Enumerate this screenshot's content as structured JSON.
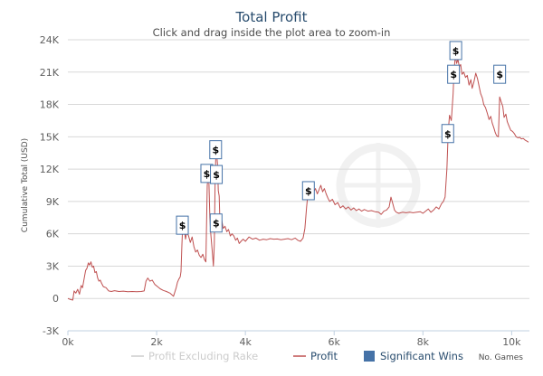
{
  "chart_data": {
    "type": "line",
    "title": "Total Profit",
    "subtitle": "Click and drag inside the plot area to zoom-in",
    "ylabel": "Cumulative Total (USD)",
    "xlabel": "No. Games",
    "xlim": [
      0,
      10400
    ],
    "ylim": [
      -3000,
      24000
    ],
    "x_ticks": [
      0,
      2000,
      4000,
      6000,
      8000,
      10000
    ],
    "x_tick_labels": [
      "0k",
      "2k",
      "4k",
      "6k",
      "8k",
      "10k"
    ],
    "y_ticks": [
      -3000,
      0,
      3000,
      6000,
      9000,
      12000,
      15000,
      18000,
      21000,
      24000
    ],
    "y_tick_labels": [
      "-3K",
      "0",
      "3K",
      "6K",
      "9K",
      "12K",
      "15K",
      "18K",
      "21K",
      "24K"
    ],
    "grid": "horizontal",
    "legend_position": "bottom",
    "legend": [
      {
        "label": "Profit Excluding Rake",
        "color": "#cccccc",
        "kind": "line"
      },
      {
        "label": "Profit",
        "color": "#bf5050",
        "kind": "line"
      },
      {
        "label": "Significant Wins",
        "color": "#4572a7",
        "kind": "box"
      }
    ],
    "series": [
      {
        "name": "Profit",
        "color": "#bf5050",
        "points": [
          [
            0,
            0
          ],
          [
            60,
            -100
          ],
          [
            110,
            -150
          ],
          [
            140,
            700
          ],
          [
            180,
            500
          ],
          [
            220,
            850
          ],
          [
            260,
            400
          ],
          [
            300,
            1200
          ],
          [
            330,
            1000
          ],
          [
            370,
            1900
          ],
          [
            400,
            2600
          ],
          [
            430,
            2800
          ],
          [
            460,
            3300
          ],
          [
            490,
            3100
          ],
          [
            520,
            3400
          ],
          [
            550,
            2900
          ],
          [
            580,
            3000
          ],
          [
            610,
            2400
          ],
          [
            640,
            2500
          ],
          [
            670,
            1900
          ],
          [
            700,
            1600
          ],
          [
            730,
            1700
          ],
          [
            760,
            1400
          ],
          [
            800,
            1100
          ],
          [
            860,
            1000
          ],
          [
            920,
            700
          ],
          [
            980,
            650
          ],
          [
            1050,
            720
          ],
          [
            1150,
            650
          ],
          [
            1250,
            680
          ],
          [
            1350,
            620
          ],
          [
            1450,
            650
          ],
          [
            1550,
            620
          ],
          [
            1650,
            650
          ],
          [
            1720,
            700
          ],
          [
            1760,
            1600
          ],
          [
            1800,
            1900
          ],
          [
            1850,
            1600
          ],
          [
            1900,
            1700
          ],
          [
            1960,
            1300
          ],
          [
            2020,
            1100
          ],
          [
            2080,
            900
          ],
          [
            2150,
            750
          ],
          [
            2220,
            650
          ],
          [
            2300,
            500
          ],
          [
            2380,
            200
          ],
          [
            2440,
            1000
          ],
          [
            2470,
            1500
          ],
          [
            2500,
            1800
          ],
          [
            2530,
            2000
          ],
          [
            2550,
            2500
          ],
          [
            2570,
            5000
          ],
          [
            2590,
            7000
          ],
          [
            2620,
            6500
          ],
          [
            2650,
            5500
          ],
          [
            2680,
            6200
          ],
          [
            2720,
            5800
          ],
          [
            2760,
            5200
          ],
          [
            2800,
            5700
          ],
          [
            2840,
            4800
          ],
          [
            2880,
            4300
          ],
          [
            2920,
            4500
          ],
          [
            2960,
            4000
          ],
          [
            3000,
            3800
          ],
          [
            3040,
            4100
          ],
          [
            3080,
            3600
          ],
          [
            3110,
            3400
          ],
          [
            3140,
            10500
          ],
          [
            3170,
            11800
          ],
          [
            3200,
            7500
          ],
          [
            3220,
            6000
          ],
          [
            3240,
            5000
          ],
          [
            3260,
            4000
          ],
          [
            3280,
            3000
          ],
          [
            3300,
            5000
          ],
          [
            3320,
            11500
          ],
          [
            3340,
            14000
          ],
          [
            3370,
            12500
          ],
          [
            3390,
            10000
          ],
          [
            3410,
            9500
          ],
          [
            3430,
            6500
          ],
          [
            3450,
            6800
          ],
          [
            3470,
            7200
          ],
          [
            3500,
            6500
          ],
          [
            3540,
            6700
          ],
          [
            3580,
            6200
          ],
          [
            3620,
            6400
          ],
          [
            3660,
            5800
          ],
          [
            3700,
            6000
          ],
          [
            3740,
            5800
          ],
          [
            3780,
            5400
          ],
          [
            3820,
            5600
          ],
          [
            3860,
            5100
          ],
          [
            3900,
            5300
          ],
          [
            3950,
            5500
          ],
          [
            4000,
            5300
          ],
          [
            4080,
            5700
          ],
          [
            4160,
            5500
          ],
          [
            4240,
            5600
          ],
          [
            4320,
            5400
          ],
          [
            4400,
            5500
          ],
          [
            4480,
            5450
          ],
          [
            4560,
            5550
          ],
          [
            4640,
            5500
          ],
          [
            4720,
            5520
          ],
          [
            4800,
            5450
          ],
          [
            4880,
            5500
          ],
          [
            4960,
            5550
          ],
          [
            5040,
            5450
          ],
          [
            5120,
            5600
          ],
          [
            5180,
            5400
          ],
          [
            5240,
            5300
          ],
          [
            5300,
            5600
          ],
          [
            5340,
            6500
          ],
          [
            5380,
            8500
          ],
          [
            5420,
            10200
          ],
          [
            5460,
            9800
          ],
          [
            5500,
            10400
          ],
          [
            5540,
            9900
          ],
          [
            5580,
            10200
          ],
          [
            5620,
            9700
          ],
          [
            5660,
            10100
          ],
          [
            5700,
            10500
          ],
          [
            5740,
            9900
          ],
          [
            5780,
            10200
          ],
          [
            5820,
            9700
          ],
          [
            5860,
            9300
          ],
          [
            5900,
            9000
          ],
          [
            5960,
            9200
          ],
          [
            6020,
            8700
          ],
          [
            6080,
            8900
          ],
          [
            6140,
            8400
          ],
          [
            6200,
            8600
          ],
          [
            6260,
            8300
          ],
          [
            6320,
            8500
          ],
          [
            6380,
            8200
          ],
          [
            6440,
            8400
          ],
          [
            6500,
            8150
          ],
          [
            6560,
            8300
          ],
          [
            6620,
            8100
          ],
          [
            6680,
            8250
          ],
          [
            6760,
            8100
          ],
          [
            6840,
            8150
          ],
          [
            6920,
            8050
          ],
          [
            7000,
            8000
          ],
          [
            7060,
            7800
          ],
          [
            7120,
            8100
          ],
          [
            7180,
            8200
          ],
          [
            7240,
            8500
          ],
          [
            7280,
            9400
          ],
          [
            7320,
            8800
          ],
          [
            7360,
            8200
          ],
          [
            7400,
            8000
          ],
          [
            7460,
            7900
          ],
          [
            7540,
            8000
          ],
          [
            7620,
            7950
          ],
          [
            7700,
            8000
          ],
          [
            7780,
            7950
          ],
          [
            7860,
            8000
          ],
          [
            7940,
            8050
          ],
          [
            8000,
            7900
          ],
          [
            8060,
            8100
          ],
          [
            8120,
            8300
          ],
          [
            8180,
            8000
          ],
          [
            8240,
            8200
          ],
          [
            8300,
            8500
          ],
          [
            8360,
            8300
          ],
          [
            8420,
            8800
          ],
          [
            8460,
            9000
          ],
          [
            8500,
            9400
          ],
          [
            8540,
            12000
          ],
          [
            8570,
            15500
          ],
          [
            8600,
            17000
          ],
          [
            8640,
            16500
          ],
          [
            8680,
            19000
          ],
          [
            8700,
            21000
          ],
          [
            8730,
            22500
          ],
          [
            8760,
            21800
          ],
          [
            8790,
            22200
          ],
          [
            8820,
            21500
          ],
          [
            8850,
            21700
          ],
          [
            8880,
            20800
          ],
          [
            8920,
            21000
          ],
          [
            8960,
            20500
          ],
          [
            9000,
            20700
          ],
          [
            9040,
            19800
          ],
          [
            9080,
            20300
          ],
          [
            9110,
            19500
          ],
          [
            9150,
            20100
          ],
          [
            9190,
            20900
          ],
          [
            9230,
            20400
          ],
          [
            9270,
            19600
          ],
          [
            9300,
            19000
          ],
          [
            9340,
            18600
          ],
          [
            9370,
            18000
          ],
          [
            9410,
            17700
          ],
          [
            9450,
            17200
          ],
          [
            9490,
            16600
          ],
          [
            9530,
            16900
          ],
          [
            9560,
            16300
          ],
          [
            9600,
            15800
          ],
          [
            9630,
            15400
          ],
          [
            9660,
            15100
          ],
          [
            9700,
            15000
          ],
          [
            9730,
            18700
          ],
          [
            9760,
            18300
          ],
          [
            9800,
            17800
          ],
          [
            9830,
            16800
          ],
          [
            9870,
            17100
          ],
          [
            9900,
            16400
          ],
          [
            9940,
            16000
          ],
          [
            9980,
            15600
          ],
          [
            10020,
            15500
          ],
          [
            10060,
            15300
          ],
          [
            10100,
            15000
          ],
          [
            10140,
            14900
          ],
          [
            10180,
            14950
          ],
          [
            10220,
            14800
          ],
          [
            10260,
            14850
          ],
          [
            10300,
            14700
          ],
          [
            10340,
            14600
          ],
          [
            10380,
            14500
          ]
        ]
      }
    ],
    "significant_wins": [
      {
        "label": "$",
        "x": 2580,
        "y": 6800
      },
      {
        "label": "$",
        "x": 3130,
        "y": 11600
      },
      {
        "label": "$",
        "x": 3330,
        "y": 13800
      },
      {
        "label": "$",
        "x": 3345,
        "y": 11500
      },
      {
        "label": "$",
        "x": 3340,
        "y": 7000
      },
      {
        "label": "$",
        "x": 5420,
        "y": 10000
      },
      {
        "label": "$",
        "x": 8560,
        "y": 15300
      },
      {
        "label": "$",
        "x": 8690,
        "y": 20800
      },
      {
        "label": "$",
        "x": 8740,
        "y": 23000
      },
      {
        "label": "$",
        "x": 9730,
        "y": 20800
      }
    ]
  }
}
